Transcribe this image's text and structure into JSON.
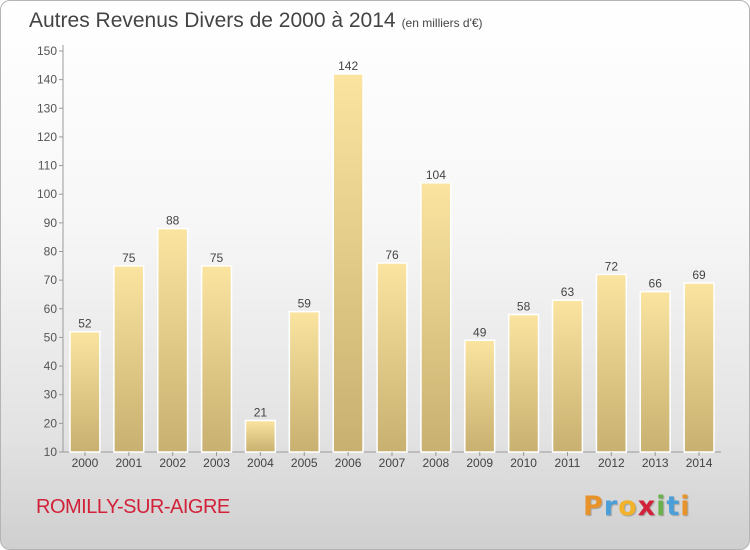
{
  "title": "Autres Revenus Divers de 2000 à 2014",
  "subtitle": "(en milliers d'€)",
  "city": "ROMILLY-SUR-AIGRE",
  "brand": {
    "letters": [
      "P",
      "r",
      "o",
      "x",
      "i",
      "t",
      "i"
    ],
    "colors": [
      "#e8932a",
      "#4a9fd8",
      "#f0b32a",
      "#d2223a",
      "#6ab04c",
      "#4a9fd8",
      "#e8932a"
    ]
  },
  "colors": {
    "bar_light": "#fae4a0",
    "bar_dark": "#c8b070",
    "title": "#444444",
    "city": "#d2223a"
  },
  "chart_data": {
    "type": "bar",
    "title": "Autres Revenus Divers de 2000 à 2014",
    "subtitle": "(en milliers d'€)",
    "categories": [
      "2000",
      "2001",
      "2002",
      "2003",
      "2004",
      "2005",
      "2006",
      "2007",
      "2008",
      "2009",
      "2010",
      "2011",
      "2012",
      "2013",
      "2014"
    ],
    "values": [
      52,
      75,
      88,
      75,
      21,
      59,
      142,
      76,
      104,
      49,
      58,
      63,
      72,
      66,
      69
    ],
    "ylim": [
      10,
      150
    ],
    "yticks": [
      10,
      20,
      30,
      40,
      50,
      60,
      70,
      80,
      90,
      100,
      110,
      120,
      130,
      140,
      150
    ],
    "grid": false,
    "data_labels": true
  }
}
